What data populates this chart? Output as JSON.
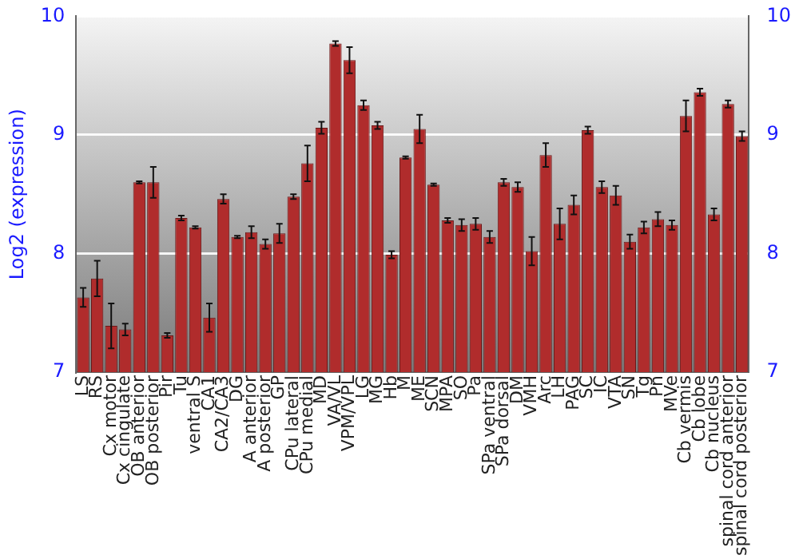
{
  "chart_data": {
    "type": "bar",
    "ylabel": "Log2 (expression)",
    "categories": [
      "LS",
      "RS",
      "Cx motor",
      "Cx cingulate",
      "OB anterior",
      "OB posterior",
      "Pir",
      "Tu",
      "ventral S",
      "CA1",
      "CA2/CA3",
      "DG",
      "A anterior",
      "A posterior",
      "GP",
      "CPu lateral",
      "CPu medial",
      "MD",
      "VA/VL",
      "VPM/VPL",
      "LG",
      "MG",
      "Hb",
      "M",
      "ME",
      "SCN",
      "MPA",
      "SO",
      "Pa",
      "SPa ventral",
      "SPa dorsal",
      "DM",
      "VMH",
      "Arc",
      "LH",
      "PAG",
      "SC",
      "IC",
      "VTA",
      "SN",
      "Tg",
      "Pn",
      "MVe",
      "Cb vermis",
      "Cb lobe",
      "Cb nucleus",
      "spinal cord anterior",
      "spinal cord posterior"
    ],
    "values": [
      7.63,
      7.79,
      7.39,
      7.36,
      8.6,
      8.6,
      7.31,
      8.3,
      8.22,
      7.46,
      8.46,
      8.14,
      8.18,
      8.08,
      8.17,
      8.48,
      8.76,
      9.06,
      9.77,
      9.63,
      9.25,
      9.08,
      7.99,
      8.81,
      9.05,
      8.58,
      8.28,
      8.24,
      8.25,
      8.14,
      8.6,
      8.56,
      8.02,
      8.83,
      8.25,
      8.41,
      9.04,
      8.56,
      8.49,
      8.1,
      8.22,
      8.29,
      8.24,
      9.16,
      9.36,
      8.33,
      9.26,
      8.99
    ],
    "errors": [
      0.08,
      0.15,
      0.19,
      0.05,
      0.01,
      0.13,
      0.02,
      0.02,
      0.01,
      0.12,
      0.04,
      0.01,
      0.05,
      0.04,
      0.08,
      0.02,
      0.15,
      0.05,
      0.02,
      0.11,
      0.04,
      0.03,
      0.03,
      0.01,
      0.12,
      0.01,
      0.02,
      0.05,
      0.05,
      0.05,
      0.03,
      0.04,
      0.12,
      0.1,
      0.13,
      0.08,
      0.03,
      0.05,
      0.08,
      0.06,
      0.05,
      0.06,
      0.04,
      0.13,
      0.03,
      0.05,
      0.03,
      0.04
    ],
    "color": "#b02c2c",
    "ylim": [
      7,
      10
    ],
    "yticks": [
      7,
      8,
      9,
      10
    ],
    "y2lim": [
      7,
      10
    ],
    "y2ticks": [
      7,
      8,
      9,
      10
    ],
    "grid": "y"
  }
}
